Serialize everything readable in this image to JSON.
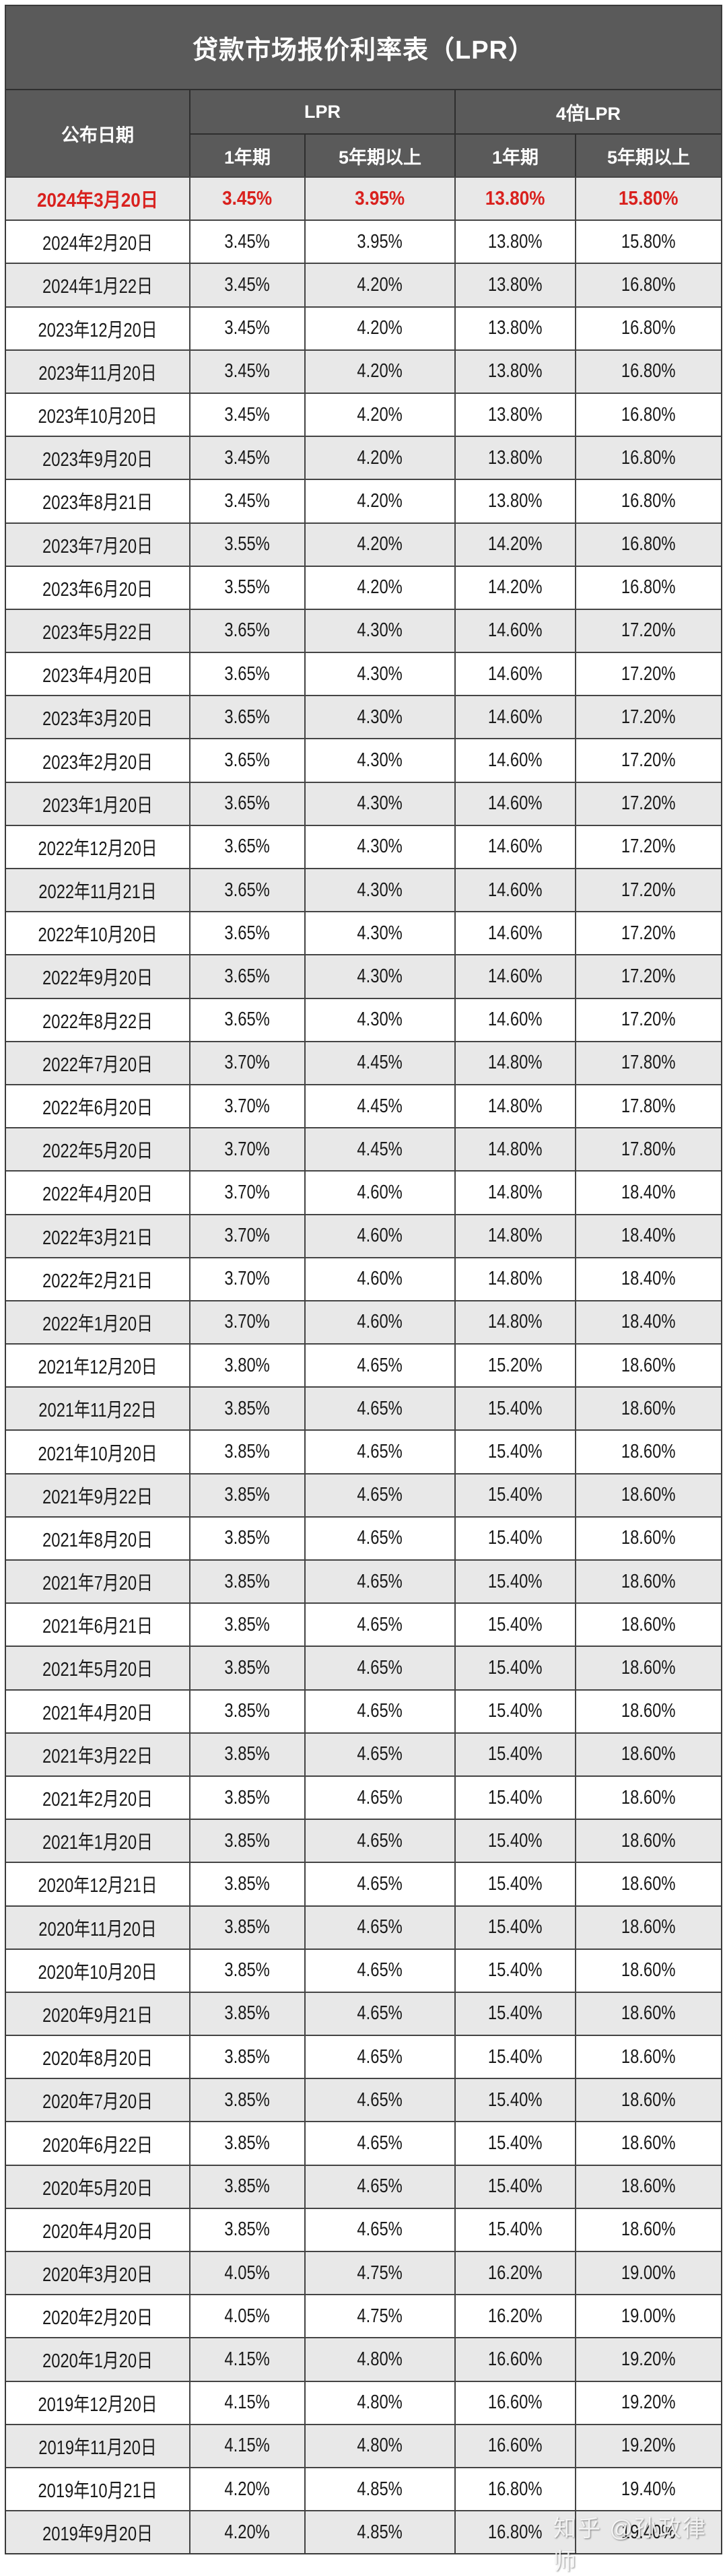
{
  "title": "贷款市场报价利率表（LPR）",
  "header": {
    "date_col": "公布日期",
    "group_lpr": "LPR",
    "group_4x": "4倍LPR",
    "sub_1y": "1年期",
    "sub_5y": "5年期以上",
    "sub_4x_1y": "1年期",
    "sub_4x_5y": "5年期以上"
  },
  "colors": {
    "header_bg": "#5a5a5a",
    "highlight_text": "#d9211e",
    "row_gray": "#e8e8e8"
  },
  "rows": [
    [
      "2024年3月20日",
      "3.45%",
      "3.95%",
      "13.80%",
      "15.80%"
    ],
    [
      "2024年2月20日",
      "3.45%",
      "3.95%",
      "13.80%",
      "15.80%"
    ],
    [
      "2024年1月22日",
      "3.45%",
      "4.20%",
      "13.80%",
      "16.80%"
    ],
    [
      "2023年12月20日",
      "3.45%",
      "4.20%",
      "13.80%",
      "16.80%"
    ],
    [
      "2023年11月20日",
      "3.45%",
      "4.20%",
      "13.80%",
      "16.80%"
    ],
    [
      "2023年10月20日",
      "3.45%",
      "4.20%",
      "13.80%",
      "16.80%"
    ],
    [
      "2023年9月20日",
      "3.45%",
      "4.20%",
      "13.80%",
      "16.80%"
    ],
    [
      "2023年8月21日",
      "3.45%",
      "4.20%",
      "13.80%",
      "16.80%"
    ],
    [
      "2023年7月20日",
      "3.55%",
      "4.20%",
      "14.20%",
      "16.80%"
    ],
    [
      "2023年6月20日",
      "3.55%",
      "4.20%",
      "14.20%",
      "16.80%"
    ],
    [
      "2023年5月22日",
      "3.65%",
      "4.30%",
      "14.60%",
      "17.20%"
    ],
    [
      "2023年4月20日",
      "3.65%",
      "4.30%",
      "14.60%",
      "17.20%"
    ],
    [
      "2023年3月20日",
      "3.65%",
      "4.30%",
      "14.60%",
      "17.20%"
    ],
    [
      "2023年2月20日",
      "3.65%",
      "4.30%",
      "14.60%",
      "17.20%"
    ],
    [
      "2023年1月20日",
      "3.65%",
      "4.30%",
      "14.60%",
      "17.20%"
    ],
    [
      "2022年12月20日",
      "3.65%",
      "4.30%",
      "14.60%",
      "17.20%"
    ],
    [
      "2022年11月21日",
      "3.65%",
      "4.30%",
      "14.60%",
      "17.20%"
    ],
    [
      "2022年10月20日",
      "3.65%",
      "4.30%",
      "14.60%",
      "17.20%"
    ],
    [
      "2022年9月20日",
      "3.65%",
      "4.30%",
      "14.60%",
      "17.20%"
    ],
    [
      "2022年8月22日",
      "3.65%",
      "4.30%",
      "14.60%",
      "17.20%"
    ],
    [
      "2022年7月20日",
      "3.70%",
      "4.45%",
      "14.80%",
      "17.80%"
    ],
    [
      "2022年6月20日",
      "3.70%",
      "4.45%",
      "14.80%",
      "17.80%"
    ],
    [
      "2022年5月20日",
      "3.70%",
      "4.45%",
      "14.80%",
      "17.80%"
    ],
    [
      "2022年4月20日",
      "3.70%",
      "4.60%",
      "14.80%",
      "18.40%"
    ],
    [
      "2022年3月21日",
      "3.70%",
      "4.60%",
      "14.80%",
      "18.40%"
    ],
    [
      "2022年2月21日",
      "3.70%",
      "4.60%",
      "14.80%",
      "18.40%"
    ],
    [
      "2022年1月20日",
      "3.70%",
      "4.60%",
      "14.80%",
      "18.40%"
    ],
    [
      "2021年12月20日",
      "3.80%",
      "4.65%",
      "15.20%",
      "18.60%"
    ],
    [
      "2021年11月22日",
      "3.85%",
      "4.65%",
      "15.40%",
      "18.60%"
    ],
    [
      "2021年10月20日",
      "3.85%",
      "4.65%",
      "15.40%",
      "18.60%"
    ],
    [
      "2021年9月22日",
      "3.85%",
      "4.65%",
      "15.40%",
      "18.60%"
    ],
    [
      "2021年8月20日",
      "3.85%",
      "4.65%",
      "15.40%",
      "18.60%"
    ],
    [
      "2021年7月20日",
      "3.85%",
      "4.65%",
      "15.40%",
      "18.60%"
    ],
    [
      "2021年6月21日",
      "3.85%",
      "4.65%",
      "15.40%",
      "18.60%"
    ],
    [
      "2021年5月20日",
      "3.85%",
      "4.65%",
      "15.40%",
      "18.60%"
    ],
    [
      "2021年4月20日",
      "3.85%",
      "4.65%",
      "15.40%",
      "18.60%"
    ],
    [
      "2021年3月22日",
      "3.85%",
      "4.65%",
      "15.40%",
      "18.60%"
    ],
    [
      "2021年2月20日",
      "3.85%",
      "4.65%",
      "15.40%",
      "18.60%"
    ],
    [
      "2021年1月20日",
      "3.85%",
      "4.65%",
      "15.40%",
      "18.60%"
    ],
    [
      "2020年12月21日",
      "3.85%",
      "4.65%",
      "15.40%",
      "18.60%"
    ],
    [
      "2020年11月20日",
      "3.85%",
      "4.65%",
      "15.40%",
      "18.60%"
    ],
    [
      "2020年10月20日",
      "3.85%",
      "4.65%",
      "15.40%",
      "18.60%"
    ],
    [
      "2020年9月21日",
      "3.85%",
      "4.65%",
      "15.40%",
      "18.60%"
    ],
    [
      "2020年8月20日",
      "3.85%",
      "4.65%",
      "15.40%",
      "18.60%"
    ],
    [
      "2020年7月20日",
      "3.85%",
      "4.65%",
      "15.40%",
      "18.60%"
    ],
    [
      "2020年6月22日",
      "3.85%",
      "4.65%",
      "15.40%",
      "18.60%"
    ],
    [
      "2020年5月20日",
      "3.85%",
      "4.65%",
      "15.40%",
      "18.60%"
    ],
    [
      "2020年4月20日",
      "3.85%",
      "4.65%",
      "15.40%",
      "18.60%"
    ],
    [
      "2020年3月20日",
      "4.05%",
      "4.75%",
      "16.20%",
      "19.00%"
    ],
    [
      "2020年2月20日",
      "4.05%",
      "4.75%",
      "16.20%",
      "19.00%"
    ],
    [
      "2020年1月20日",
      "4.15%",
      "4.80%",
      "16.60%",
      "19.20%"
    ],
    [
      "2019年12月20日",
      "4.15%",
      "4.80%",
      "16.60%",
      "19.20%"
    ],
    [
      "2019年11月20日",
      "4.15%",
      "4.80%",
      "16.60%",
      "19.20%"
    ],
    [
      "2019年10月21日",
      "4.20%",
      "4.85%",
      "16.80%",
      "19.40%"
    ],
    [
      "2019年9月20日",
      "4.20%",
      "4.85%",
      "16.80%",
      "19.40%"
    ]
  ],
  "watermark": "知乎 @孙政律师"
}
